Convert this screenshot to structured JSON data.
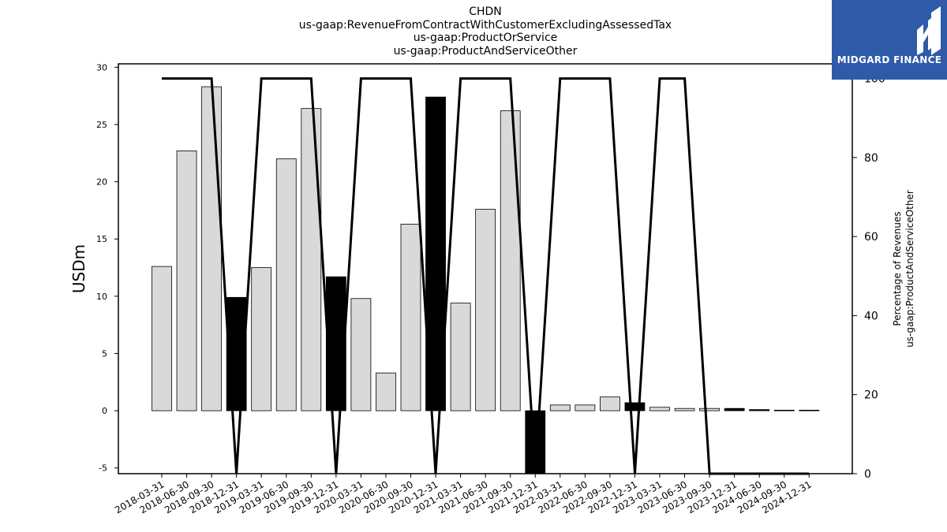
{
  "chart_data": {
    "type": "bar",
    "title_lines": [
      "CHDN",
      "us-gaap:RevenueFromContractWithCustomerExcludingAssessedTax",
      "us-gaap:ProductOrService",
      "us-gaap:ProductAndServiceOther"
    ],
    "ylabel": "USDm",
    "y2label_lines": [
      "Percentage of Revenues",
      "us-gaap:ProductAndServiceOther"
    ],
    "ylim": [
      -5.5,
      30.3
    ],
    "y2lim": [
      0,
      103.7
    ],
    "yticks": [
      -5,
      0,
      5,
      10,
      15,
      20,
      25,
      30
    ],
    "y2ticks": [
      0,
      20,
      40,
      60,
      80,
      100
    ],
    "categories": [
      "2018-03-31",
      "2018-06-30",
      "2018-09-30",
      "2018-12-31",
      "2019-03-31",
      "2019-06-30",
      "2019-09-30",
      "2019-12-31",
      "2020-03-31",
      "2020-06-30",
      "2020-09-30",
      "2020-12-31",
      "2021-03-31",
      "2021-06-30",
      "2021-09-30",
      "2021-12-31",
      "2022-03-31",
      "2022-06-30",
      "2022-09-30",
      "2022-12-31",
      "2023-03-31",
      "2023-06-30",
      "2023-09-30",
      "2023-12-31",
      "2024-06-30",
      "2024-09-30",
      "2024-12-31"
    ],
    "series": [
      {
        "type": "bar",
        "values": [
          12.6,
          22.7,
          28.3,
          9.9,
          12.5,
          22.0,
          26.4,
          11.7,
          9.8,
          3.3,
          16.3,
          27.4,
          9.4,
          17.6,
          26.2,
          -5.5,
          0.5,
          0.5,
          1.2,
          0.7,
          0.3,
          0.2,
          0.2,
          0.2,
          0.1,
          0.05,
          0.05
        ],
        "highlight": [
          false,
          false,
          false,
          true,
          false,
          false,
          false,
          true,
          false,
          false,
          false,
          true,
          false,
          false,
          false,
          true,
          false,
          false,
          false,
          true,
          false,
          false,
          false,
          true,
          true,
          false,
          false
        ]
      },
      {
        "type": "line",
        "axis": "right",
        "values": [
          100,
          100,
          100,
          0,
          100,
          100,
          100,
          0,
          100,
          100,
          100,
          0,
          100,
          100,
          100,
          0,
          100,
          100,
          100,
          0,
          100,
          100,
          0,
          0,
          0,
          0,
          0
        ]
      }
    ],
    "colors": {
      "bar": "#d9d9d9",
      "bar_highlight": "#000000",
      "line": "#000000"
    },
    "grid": false
  },
  "logo": {
    "text": "MIDGARD FINANCE",
    "color": "#2f5aa8"
  }
}
